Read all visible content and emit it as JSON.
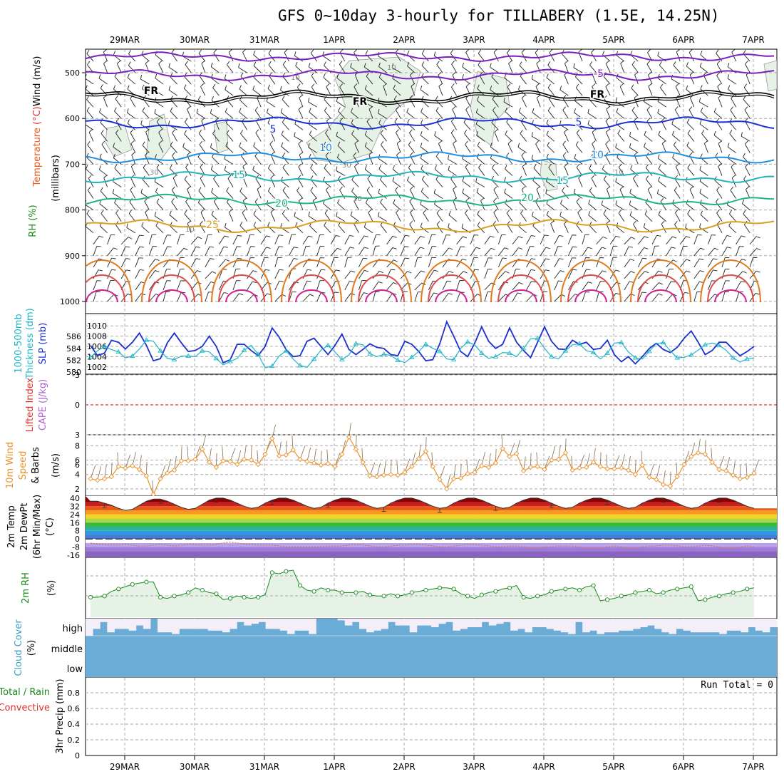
{
  "title": "GFS 0~10day 3-hourly for TILLABERY (1.5E, 14.25N)",
  "dates": [
    "29MAR",
    "30MAR",
    "31MAR",
    "1APR",
    "2APR",
    "3APR",
    "4APR",
    "5APR",
    "6APR",
    "7APR"
  ],
  "colors": {
    "grid": "#a8a8a8",
    "rh_fill": "#e5f2e5",
    "rh_line": "#1b8a1b",
    "tds_blue": "#1c2fd0",
    "cyan": "#1fb5c8",
    "orange": "#e8922e",
    "cloud": "#6aacd6",
    "cloud_bg": "#f3eef8"
  },
  "chart_data": [
    {
      "id": "upper-air",
      "type": "contour",
      "ylabel_words": [
        "RH (%)",
        "Temperature",
        "(°C)",
        "Wind (m/s)",
        "(millibars)"
      ],
      "yticks": [
        500,
        600,
        700,
        800,
        900,
        1000
      ],
      "ylim": [
        1000,
        450
      ],
      "temperature_contours": [
        {
          "value": "-5",
          "color": "#7b1fc0",
          "label": "-5"
        },
        {
          "value": "FR",
          "color": "#000000",
          "label": "FR"
        },
        {
          "value": "5",
          "color": "#1c2fd0",
          "label": "5"
        },
        {
          "value": "10",
          "color": "#1e90e0",
          "label": "10"
        },
        {
          "value": "15",
          "color": "#1fb5b5",
          "label": "15"
        },
        {
          "value": "20",
          "color": "#1fb58a",
          "label": "20"
        },
        {
          "value": "25",
          "color": "#d9a020",
          "label": "25"
        }
      ],
      "rh_labels": [
        "10",
        "30"
      ]
    },
    {
      "id": "slp-thickness",
      "type": "line",
      "ylabel_words": [
        "1000-500mb",
        "Thickness (dm)",
        "SLP (mb)"
      ],
      "left_ticks": [
        580,
        582,
        584,
        586
      ],
      "right_ticks": [
        1002,
        1004,
        1006,
        1008,
        1010
      ],
      "series": [
        {
          "name": "SLP (mb)",
          "color": "#1c2fd0",
          "values": [
            1006.2,
            1004.2,
            1004.7,
            1007.2,
            1006.8,
            1005.5,
            1006.8,
            1008.6,
            1006.2,
            1003.2,
            1003.6,
            1006.7,
            1008.6,
            1006.7,
            1005.0,
            1005.2,
            1006.0,
            1008.0,
            1006.0,
            1002.8,
            1003.4,
            1006.4,
            1006.4,
            1005.2,
            1004.2,
            1006.0,
            1009.6,
            1007.8,
            1005.4,
            1004.0,
            1004.2,
            1007.0,
            1007.6,
            1006.0,
            1004.4,
            1006.2,
            1008.4,
            1005.4,
            1004.4,
            1005.4,
            1006.5,
            1005.8,
            1005.6,
            1004.4,
            1004.2,
            1007.0,
            1006.4,
            1005.0,
            1003.2,
            1003.4,
            1006.5,
            1010.8,
            1008.0,
            1005.0,
            1004.0,
            1006.6,
            1009.8,
            1007.0,
            1005.6,
            1006.4,
            1009.6,
            1006.8,
            1005.2,
            1003.8,
            1006.8,
            1009.8,
            1007.0,
            1005.5,
            1005.4,
            1007.2,
            1006.4,
            1006.8,
            1005.4,
            1005.6,
            1007.2,
            1004.4,
            1003.0,
            1004.0,
            1002.6,
            1004.0,
            1005.6,
            1006.6,
            1005.4,
            1004.8,
            1005.8,
            1007.6,
            1009.0,
            1006.8,
            1004.4,
            1005.2,
            1006.8,
            1006.8,
            1005.4,
            1004.2,
            1005.0,
            1006.0
          ]
        },
        {
          "name": "Thickness (dm)",
          "color": "#1fb5c8",
          "values": [
            582.5,
            583.6,
            584.3,
            583.8,
            583.4,
            582.4,
            582.7,
            583.9,
            585.4,
            585.2,
            583.6,
            582.3,
            582.1,
            582.7,
            582.7,
            582.6,
            583.6,
            583.4,
            582.3,
            581.2,
            581.8,
            582.3,
            583.7,
            584.5,
            583.0,
            580.7,
            581.0,
            582.7,
            583.6,
            582.2,
            581.1,
            580.8,
            582.2,
            583.7,
            584.5,
            583.4,
            582.1,
            582.9,
            584.8,
            584.6,
            583.1,
            582.6,
            583.0,
            582.8,
            582.0,
            581.6,
            582.5,
            583.5,
            584.7,
            584.0,
            583.5,
            582.2,
            582.1,
            584.0,
            585.1,
            584.6,
            583.2,
            582.3,
            582.6,
            583.3,
            583.2,
            582.6,
            584.0,
            585.6,
            585.7,
            584.0,
            582.6,
            582.2,
            583.6,
            584.6,
            584.8,
            583.6,
            583.3,
            582.2,
            583.2,
            584.9,
            585.0,
            583.4,
            582.4,
            582.2,
            583.5,
            584.8,
            585.0,
            583.6,
            582.4,
            582.5,
            582.9,
            583.7,
            584.6,
            584.9,
            584.5,
            583.7,
            582.4,
            581.7,
            582.2,
            582.4
          ]
        }
      ]
    },
    {
      "id": "lifted-cape",
      "type": "line",
      "ylabel_words": [
        "Lifted Index",
        "CAPE (J/kg)"
      ],
      "yticks": [
        -3,
        0,
        3,
        6
      ],
      "tick_labels": [
        "-3",
        "0",
        "3",
        "6"
      ],
      "zero_line_color": "#e03030",
      "series": []
    },
    {
      "id": "wind10m",
      "type": "line",
      "ylabel_words": [
        "10m Wind",
        "Speed",
        "& Barbs",
        "(m/s)"
      ],
      "yticks": [
        2,
        4,
        6,
        8
      ],
      "ylim": [
        1,
        9.5
      ],
      "series": [
        {
          "name": "10m Wind Speed",
          "color": "#e8922e",
          "values": [
            3.4,
            3.2,
            3.4,
            3.7,
            5.1,
            4.9,
            5.2,
            4.7,
            3.8,
            1.2,
            3.4,
            4.2,
            4.6,
            5.9,
            5.9,
            6.1,
            7.5,
            5.7,
            5.0,
            5.9,
            5.8,
            5.4,
            6.1,
            6.0,
            5.4,
            6.8,
            9.0,
            6.6,
            6.7,
            7.4,
            6.1,
            5.8,
            5.6,
            5.3,
            5.5,
            5.1,
            6.8,
            9.2,
            7.5,
            5.7,
            3.8,
            3.7,
            3.9,
            4.0,
            3.9,
            4.3,
            5.1,
            6.2,
            7.2,
            5.1,
            3.3,
            2.0,
            3.4,
            3.5,
            4.1,
            4.3,
            5.2,
            5.0,
            5.6,
            7.6,
            6.5,
            6.9,
            4.5,
            5.0,
            5.1,
            4.7,
            6.0,
            6.1,
            7.0,
            4.6,
            4.9,
            5.0,
            5.7,
            5.1,
            4.8,
            4.8,
            4.9,
            4.6,
            4.0,
            5.3,
            3.6,
            3.3,
            2.6,
            2.4,
            3.7,
            5.4,
            6.5,
            7.0,
            6.8,
            5.7,
            4.7,
            4.5,
            3.9,
            3.4,
            3.6,
            4.2
          ]
        }
      ]
    },
    {
      "id": "temp2m",
      "type": "area",
      "ylabel_words": [
        "2m Temp",
        "2m DewPt",
        "(6hr Min/Max)",
        "(°C)"
      ],
      "yticks": [
        40,
        32,
        24,
        16,
        8,
        0,
        -8,
        -16
      ],
      "tick_labels": [
        "40",
        "32",
        "24",
        "16",
        "8",
        "0",
        "-8",
        "-16"
      ],
      "ylim": [
        -18,
        42
      ],
      "series": [
        {
          "name": "2m Temp",
          "color": "#333333",
          "values": [
            37,
            37,
            35,
            33,
            30,
            28,
            29,
            33,
            37,
            39,
            39,
            37,
            34,
            31,
            29,
            30,
            34,
            38,
            40,
            40,
            38,
            35,
            32,
            30,
            31,
            35,
            38,
            40,
            40,
            38,
            35,
            32,
            30,
            31,
            35,
            38,
            40,
            40,
            38,
            35,
            32,
            30,
            31,
            35,
            38,
            40,
            40,
            38,
            35,
            32,
            30,
            31,
            35,
            38,
            40,
            40,
            38,
            35,
            32,
            30,
            31,
            35,
            38,
            40,
            40,
            38,
            35,
            32,
            30,
            31,
            35,
            38,
            40,
            40,
            38,
            35,
            32,
            30,
            31,
            35,
            38,
            40,
            40,
            38,
            35,
            32,
            30,
            31,
            35,
            38,
            40,
            40,
            38,
            35,
            32,
            30
          ]
        },
        {
          "name": "2m DewPt",
          "color": "#c08050",
          "values": [
            -4,
            -5,
            -5,
            -6,
            -6,
            -5,
            -6,
            -7,
            -7,
            -6,
            -5,
            -6,
            -7,
            -6,
            -5,
            -5,
            -6,
            -6,
            -5,
            -4,
            -3,
            -4,
            -5,
            -5,
            -6,
            -6,
            -6,
            -7,
            -8,
            -8,
            -8,
            -8,
            -8,
            -8,
            -7,
            -7,
            -7,
            -6,
            -5,
            -6,
            -7,
            -8,
            -8,
            -7,
            -6,
            -6,
            -5,
            -5,
            -6,
            -7,
            -8,
            -8,
            -7,
            -6,
            -5,
            -5,
            -6,
            -7,
            -8,
            -8,
            -7,
            -7,
            -8,
            -9,
            -9,
            -8,
            -8,
            -7,
            -7,
            -7,
            -8,
            -9,
            -10,
            -9,
            -8,
            -7,
            -8,
            -9,
            -9,
            -8,
            -7,
            -7,
            -6,
            -6,
            -7,
            -8,
            -8,
            -7,
            -6,
            -7,
            -8,
            -9,
            -9,
            -8,
            -7,
            -8
          ]
        }
      ]
    },
    {
      "id": "rh2m",
      "type": "area",
      "ylabel_words": [
        "2m RH",
        "(%)"
      ],
      "ylim": [
        0,
        50
      ],
      "series": [
        {
          "name": "2m RH",
          "color": "#1b8a1b",
          "values": [
            17,
            17,
            18,
            22,
            24,
            26,
            28,
            29,
            30,
            30,
            17,
            16,
            18,
            19,
            21,
            25,
            23,
            21,
            20,
            15,
            16,
            18,
            17,
            16,
            17,
            19,
            38,
            37,
            39,
            40,
            27,
            23,
            22,
            25,
            23,
            23,
            21,
            21,
            21,
            22,
            19,
            18,
            18,
            20,
            18,
            19,
            21,
            22,
            23,
            24,
            25,
            25,
            24,
            20,
            18,
            16,
            19,
            21,
            22,
            24,
            25,
            27,
            17,
            16,
            18,
            19,
            22,
            23,
            24,
            25,
            23,
            26,
            27,
            14,
            15,
            16,
            18,
            19,
            21,
            22,
            23,
            20,
            21,
            23,
            24,
            25,
            26,
            14,
            15,
            17,
            18,
            20,
            21,
            22,
            24,
            25
          ]
        }
      ]
    },
    {
      "id": "cloud",
      "type": "bar",
      "ylabel_words": [
        "Cloud Cover",
        "(%)"
      ],
      "layer_labels": [
        "high",
        "middle",
        "low"
      ],
      "series": [
        {
          "name": "high",
          "values": [
            0,
            0.4,
            0.8,
            0.2,
            0.4,
            0.4,
            0.3,
            0.6,
            0.4,
            1.0,
            0.2,
            0.2,
            0.1,
            0.4,
            0.4,
            0.4,
            0.4,
            0.3,
            0.3,
            0.2,
            0.4,
            0.8,
            0.6,
            0.7,
            0.8,
            0.4,
            0.4,
            0.3,
            0.1,
            0.3,
            0.3,
            0.1,
            1.0,
            1.0,
            1.0,
            0.9,
            0.6,
            0.8,
            0.4,
            0.2,
            0.3,
            0.4,
            0.8,
            0.6,
            0.6,
            0.2,
            0.6,
            0.6,
            0.5,
            0.7,
            0.8,
            0.3,
            0.4,
            0.5,
            0.5,
            0.8,
            0.6,
            0.7,
            0.8,
            0.3,
            0.4,
            0.2,
            0.5,
            0.5,
            0.4,
            0.3,
            0.2,
            0.1,
            0.8,
            0.2,
            0.3,
            0.1,
            0.2,
            0.2,
            0.3,
            0.3,
            0.4,
            0.5,
            0.6,
            0.4,
            0.2,
            0.1,
            0.4,
            0.3,
            0.2,
            0.2,
            0.2,
            0.2,
            0.1,
            0.3,
            0.3,
            0.2,
            0.5,
            0.3,
            0.2,
            0.5
          ]
        }
      ]
    },
    {
      "id": "precip",
      "type": "bar",
      "ylabel_words": [
        "Total / Rain",
        "Convective",
        "3hr Precip (mm)"
      ],
      "yticks": [
        0,
        0.2,
        0.4,
        0.6,
        0.8
      ],
      "tick_labels": [
        "0",
        "0.2",
        "0.4",
        "0.6",
        "0.8"
      ],
      "ylim": [
        0,
        1
      ],
      "run_total": "Run Total = 0",
      "series": []
    }
  ]
}
